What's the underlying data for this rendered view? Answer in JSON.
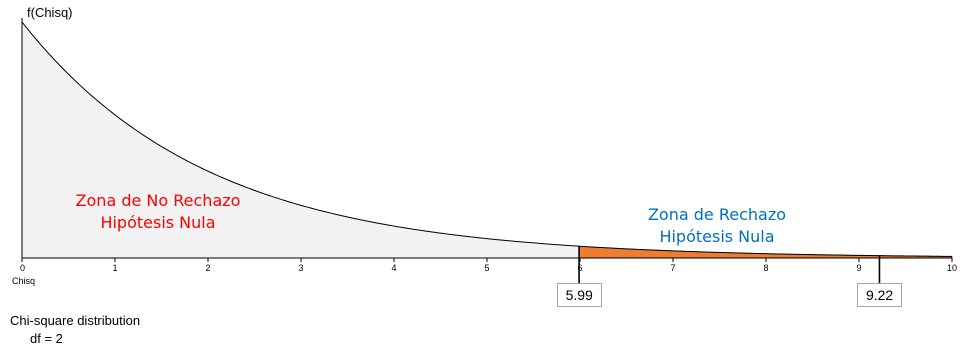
{
  "chart_data": {
    "type": "area",
    "distribution": "chi-square",
    "df": 2,
    "ylabel": "f(Chisq)",
    "xlabel": "Chisq",
    "xlim": [
      0,
      10
    ],
    "xticks": [
      "0",
      "1",
      "2",
      "3",
      "4",
      "5",
      "6",
      "7",
      "8",
      "9",
      "10"
    ],
    "x": [
      0,
      0.5,
      1,
      1.5,
      2,
      2.5,
      3,
      3.5,
      4,
      4.5,
      5,
      5.5,
      6,
      6.5,
      7,
      7.5,
      8,
      8.5,
      9,
      9.5,
      10
    ],
    "y": [
      0.5,
      0.389,
      0.303,
      0.236,
      0.184,
      0.143,
      0.112,
      0.087,
      0.068,
      0.053,
      0.041,
      0.032,
      0.025,
      0.019,
      0.015,
      0.012,
      0.009,
      0.007,
      0.006,
      0.004,
      0.003
    ],
    "regions": [
      {
        "label_line1": "Zona de No Rechazo",
        "label_line2": "Hipótesis Nula",
        "from": 0,
        "to": 5.99,
        "fill": "#f2f2f2",
        "text_color": "#ff0000"
      },
      {
        "label_line1": "Zona de Rechazo",
        "label_line2": "Hipótesis Nula",
        "from": 5.99,
        "to": 10,
        "fill": "#ed7d31",
        "text_color": "#0070c0"
      }
    ],
    "critical_values": [
      {
        "value": 5.99,
        "label": "5.99"
      },
      {
        "value": 9.22,
        "label": "9.22"
      }
    ]
  },
  "footer": {
    "title": "Chi-square distribution",
    "df_text": "df = 2"
  }
}
